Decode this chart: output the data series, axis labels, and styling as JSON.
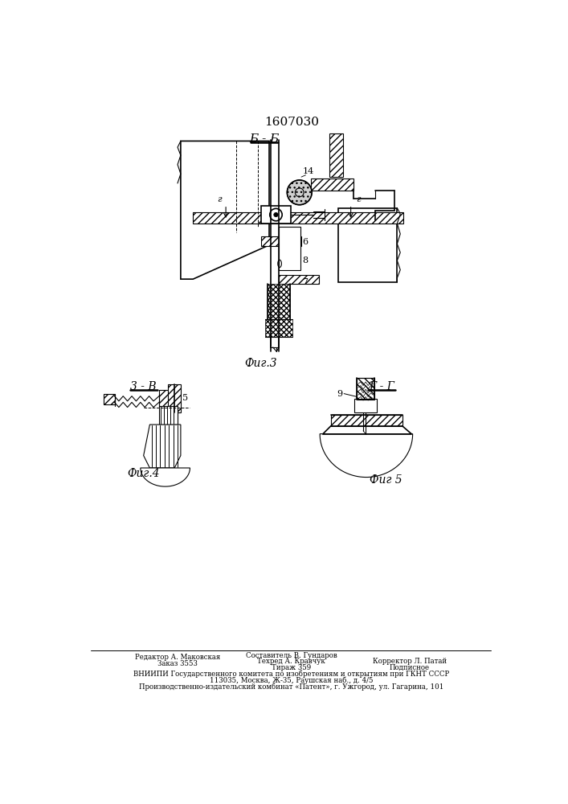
{
  "patent_number": "1607030",
  "background_color": "#ffffff",
  "line_color": "#000000",
  "fig3_label": "Фиг.3",
  "fig4_label": "Фиг.4",
  "fig5_label": "Фиг 5",
  "section_bb": "Б - Б",
  "section_zv": "3 - В",
  "section_gg": "Г - Г",
  "footer_col1_line1": "Редактор А. Маковская",
  "footer_col1_line2": "Заказ 3553",
  "footer_col2_line1": "Составитель В. Гундаров",
  "footer_col2_line2": "Техред А. Кравчук",
  "footer_col2_line3": "Тираж 359",
  "footer_col3_line1": "Корректор Л. Патай",
  "footer_col3_line2": "Подписное",
  "footer_vniip": "ВНИИПИ Государственного комитета по изобретениям и открытиям при ГКНТ СССР",
  "footer_addr1": "113035, Москва, Ж-35, Раушская наб., д. 4/5",
  "footer_addr2": "Производственно-издательский комбинат «Патент», г. Ужгород, ул. Гагарина, 101"
}
